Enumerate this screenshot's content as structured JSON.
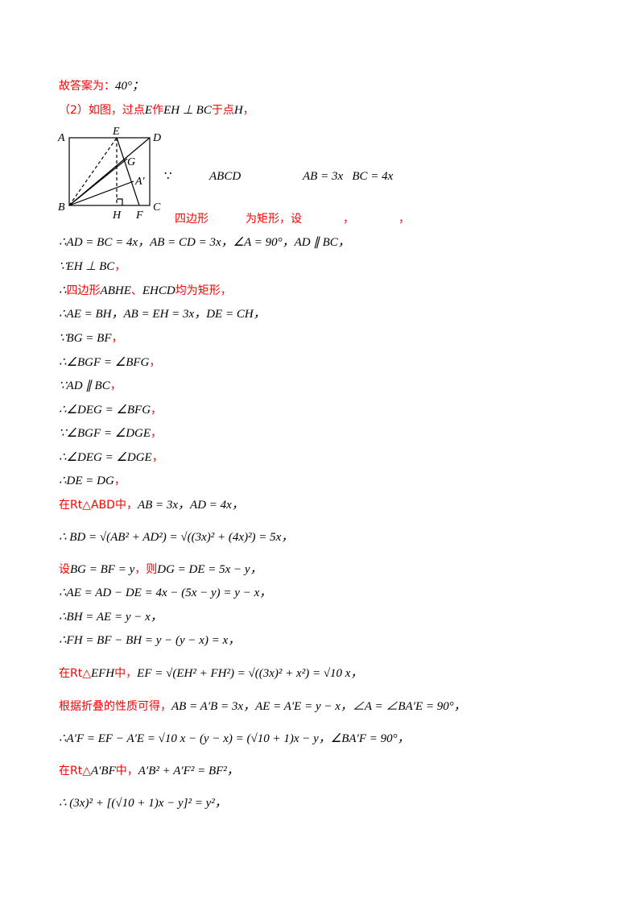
{
  "lines": [
    [
      {
        "text": "故答案为：",
        "color": "#ff0000"
      },
      {
        "text": "40°；"
      }
    ],
    [
      {
        "text": "（2）如图，过点",
        "color": "#ff0000"
      },
      {
        "text": "E"
      },
      {
        "text": "作",
        "color": "#ff0000"
      },
      {
        "text": "EH ⊥ BC"
      },
      {
        "text": "于点",
        "color": "#ff0000"
      },
      {
        "text": "H"
      },
      {
        "text": "，",
        "color": "#ff0000"
      }
    ],
    [
      {
        "text": "∴AD = BC = 4x，AB = CD = 3x，∠A = 90°，AD ∥ BC，"
      }
    ],
    [
      {
        "text": "∵EH ⊥ BC"
      },
      {
        "text": "，",
        "color": "#ff0000"
      }
    ],
    [
      {
        "text": "∴"
      },
      {
        "text": "四边形",
        "color": "#ff0000"
      },
      {
        "text": "ABHE"
      },
      {
        "text": "、",
        "color": "#ff0000"
      },
      {
        "text": "EHCD"
      },
      {
        "text": "均为矩形，",
        "color": "#ff0000"
      }
    ],
    [
      {
        "text": "∴AE = BH，AB = EH = 3x，DE = CH，"
      }
    ],
    [
      {
        "text": "∵BG = BF"
      },
      {
        "text": "，",
        "color": "#ff0000"
      }
    ],
    [
      {
        "text": "∴∠BGF = ∠BFG"
      },
      {
        "text": "，",
        "color": "#ff0000"
      }
    ],
    [
      {
        "text": "∵AD ∥ BC"
      },
      {
        "text": "，",
        "color": "#ff0000"
      }
    ],
    [
      {
        "text": "∴∠DEG = ∠BFG"
      },
      {
        "text": "，",
        "color": "#ff0000"
      }
    ],
    [
      {
        "text": "∵∠BGF = ∠DGE"
      },
      {
        "text": "，",
        "color": "#ff0000"
      }
    ],
    [
      {
        "text": "∴∠DEG = ∠DGE"
      },
      {
        "text": "，",
        "color": "#ff0000"
      }
    ],
    [
      {
        "text": "∴DE = DG"
      },
      {
        "text": "，",
        "color": "#ff0000"
      }
    ],
    [
      {
        "text": "在Rt△ABD中，",
        "color": "#ff0000"
      },
      {
        "text": "AB = 3x，AD = 4x，"
      }
    ],
    [
      {
        "text": "∴ BD = √(AB² + AD²) = √((3x)² + (4x)²) = 5x，"
      }
    ],
    [
      {
        "text": "设",
        "color": "#ff0000"
      },
      {
        "text": "BG = BF = y"
      },
      {
        "text": "，则",
        "color": "#ff0000"
      },
      {
        "text": "DG = DE = 5x − y，"
      }
    ],
    [
      {
        "text": "∴AE = AD − DE = 4x − (5x − y) = y − x，"
      }
    ],
    [
      {
        "text": "∴BH = AE = y − x，"
      }
    ],
    [
      {
        "text": "∴FH = BF − BH = y − (y − x) = x，"
      }
    ],
    [
      {
        "text": "在Rt△",
        "color": "#ff0000"
      },
      {
        "text": "EFH"
      },
      {
        "text": "中，",
        "color": "#ff0000"
      },
      {
        "text": "EF = √(EH² + FH²) = √((3x)² + x²) = √10 x，"
      }
    ],
    [
      {
        "text": "根据折叠的性质可得，",
        "color": "#ff0000"
      },
      {
        "text": "AB = A′B = 3x，AE = A′E = y − x，∠A = ∠BA′E = 90°，"
      }
    ],
    [
      {
        "text": "∴A′F = EF − A′E = √10 x − (y − x) = (√10 + 1)x − y，∠BA′F = 90°，"
      }
    ],
    [
      {
        "text": "在Rt△",
        "color": "#ff0000"
      },
      {
        "text": "A′BF"
      },
      {
        "text": "中，",
        "color": "#ff0000"
      },
      {
        "text": "A′B² + A′F² = BF²，"
      }
    ],
    [
      {
        "text": "∴ (3x)² + [(√10 + 1)x − y]² = y²，"
      }
    ]
  ],
  "figure": {
    "labels": [
      "A",
      "E",
      "D",
      "B",
      "H",
      "F",
      "C",
      "G",
      "A′"
    ]
  },
  "because_line": {
    "symbol": "∵",
    "name": "ABCD",
    "given": "AB = 3x   BC = 4x",
    "red": [
      "四边形",
      "为矩形，设",
      "，",
      "，"
    ]
  }
}
